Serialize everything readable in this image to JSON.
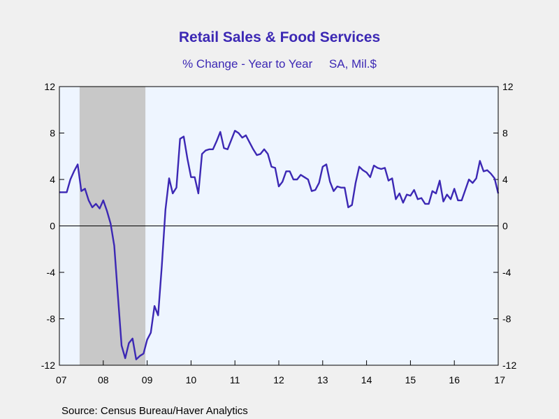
{
  "chart_data": {
    "type": "line",
    "title": "Retail Sales & Food Services",
    "subtitle": "% Change - Year to Year     SA, Mil.$",
    "source": "Source:  Census Bureau/Haver Analytics",
    "ylim": [
      -12,
      12
    ],
    "yticks": [
      "12",
      "8",
      "4",
      "0",
      "-4",
      "-8",
      "-12"
    ],
    "ytick_values": [
      12,
      8,
      4,
      0,
      -4,
      -8,
      -12
    ],
    "xlim": [
      2007,
      2017
    ],
    "xticks": [
      "07",
      "08",
      "09",
      "10",
      "11",
      "12",
      "13",
      "14",
      "15",
      "16",
      "17"
    ],
    "xtick_values": [
      2007,
      2008,
      2009,
      2010,
      2011,
      2012,
      2013,
      2014,
      2015,
      2016,
      2017
    ],
    "recession": {
      "start": 2007.46,
      "end": 2008.96,
      "color": "#c8c8c8"
    },
    "plot_background": "#eef5ff",
    "line_color": "#3c28b4",
    "series": [
      {
        "x": [
          2007.0,
          2007.083,
          2007.167,
          2007.25,
          2007.333,
          2007.417,
          2007.5,
          2007.583,
          2007.667,
          2007.75,
          2007.833,
          2007.917,
          2008.0,
          2008.083,
          2008.167,
          2008.25,
          2008.333,
          2008.417,
          2008.5,
          2008.583,
          2008.667,
          2008.75,
          2008.833,
          2008.917,
          2009.0,
          2009.083,
          2009.167,
          2009.25,
          2009.333,
          2009.417,
          2009.5,
          2009.583,
          2009.667,
          2009.75,
          2009.833,
          2009.917,
          2010.0,
          2010.083,
          2010.167,
          2010.25,
          2010.333,
          2010.417,
          2010.5,
          2010.583,
          2010.667,
          2010.75,
          2010.833,
          2010.917,
          2011.0,
          2011.083,
          2011.167,
          2011.25,
          2011.333,
          2011.417,
          2011.5,
          2011.583,
          2011.667,
          2011.75,
          2011.833,
          2011.917,
          2012.0,
          2012.083,
          2012.167,
          2012.25,
          2012.333,
          2012.417,
          2012.5,
          2012.583,
          2012.667,
          2012.75,
          2012.833,
          2012.917,
          2013.0,
          2013.083,
          2013.167,
          2013.25,
          2013.333,
          2013.417,
          2013.5,
          2013.583,
          2013.667,
          2013.75,
          2013.833,
          2013.917,
          2014.0,
          2014.083,
          2014.167,
          2014.25,
          2014.333,
          2014.417,
          2014.5,
          2014.583,
          2014.667,
          2014.75,
          2014.833,
          2014.917,
          2015.0,
          2015.083,
          2015.167,
          2015.25,
          2015.333,
          2015.417,
          2015.5,
          2015.583,
          2015.667,
          2015.75,
          2015.833,
          2015.917,
          2016.0,
          2016.083,
          2016.167,
          2016.25,
          2016.333,
          2016.417,
          2016.5,
          2016.583,
          2016.667,
          2016.75,
          2016.833,
          2016.917,
          2017.0
        ],
        "y": [
          2.9,
          2.9,
          2.9,
          4.0,
          4.7,
          5.3,
          3.0,
          3.2,
          2.2,
          1.6,
          1.9,
          1.5,
          2.2,
          1.3,
          0.2,
          -1.7,
          -6.0,
          -10.3,
          -11.4,
          -10.1,
          -9.7,
          -11.5,
          -11.2,
          -11.0,
          -9.8,
          -9.2,
          -6.9,
          -7.7,
          -3.5,
          1.4,
          4.1,
          2.8,
          3.3,
          7.5,
          7.7,
          5.8,
          4.2,
          4.2,
          2.8,
          6.2,
          6.5,
          6.6,
          6.6,
          7.3,
          8.1,
          6.7,
          6.6,
          7.4,
          8.2,
          8.0,
          7.6,
          7.8,
          7.2,
          6.6,
          6.1,
          6.2,
          6.6,
          6.2,
          5.1,
          5.0,
          3.4,
          3.8,
          4.7,
          4.7,
          4.0,
          4.0,
          4.4,
          4.2,
          4.0,
          3.0,
          3.1,
          3.7,
          5.1,
          5.3,
          3.8,
          3.0,
          3.4,
          3.3,
          3.3,
          1.6,
          1.8,
          3.7,
          5.1,
          4.8,
          4.6,
          4.2,
          5.2,
          5.0,
          4.9,
          5.0,
          3.9,
          4.1,
          2.3,
          2.8,
          2.0,
          2.7,
          2.6,
          3.1,
          2.3,
          2.4,
          1.9,
          1.9,
          3.0,
          2.8,
          3.9,
          2.1,
          2.7,
          2.3,
          3.2,
          2.2,
          2.2,
          3.1,
          4.0,
          3.7,
          4.1,
          5.6,
          4.7,
          4.8,
          4.5,
          4.1,
          2.8
        ]
      }
    ]
  }
}
